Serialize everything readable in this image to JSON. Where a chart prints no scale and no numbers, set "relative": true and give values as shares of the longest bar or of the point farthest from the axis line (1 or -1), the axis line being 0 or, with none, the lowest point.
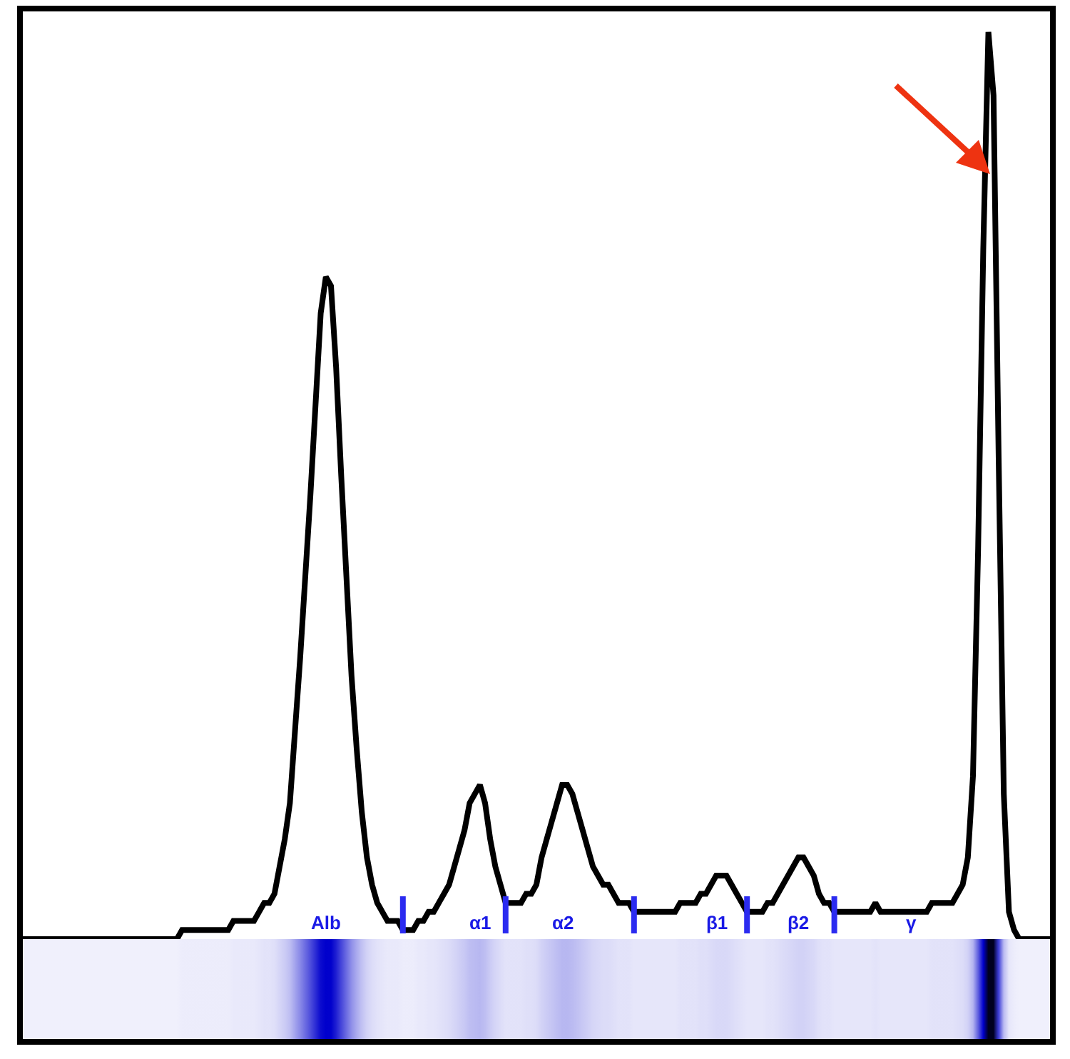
{
  "chart_data": {
    "type": "line",
    "relative": true,
    "grid": false,
    "legend": false,
    "marker": "none",
    "line_style": "solid",
    "categories": [
      null,
      null,
      null,
      null,
      null,
      null,
      null,
      null,
      null,
      null,
      null,
      null,
      null,
      null,
      null,
      null,
      null,
      null,
      null,
      null,
      null,
      null,
      null,
      null,
      null,
      null,
      null,
      null,
      null,
      null,
      null,
      null,
      null,
      null,
      null,
      null,
      null,
      null,
      null,
      null,
      null,
      null,
      null,
      null,
      null,
      null,
      null,
      null,
      null,
      null,
      null,
      null,
      null,
      null,
      null,
      null,
      null,
      null,
      null,
      null,
      null,
      null,
      null,
      null,
      null,
      null,
      null,
      null,
      null,
      null,
      null,
      null,
      null,
      null,
      null,
      null,
      null,
      null,
      null,
      null,
      null,
      null,
      null,
      null,
      null,
      null,
      null,
      null,
      null,
      null,
      null,
      null,
      null,
      null,
      null,
      null,
      null,
      null,
      null,
      null,
      null,
      null,
      null,
      null,
      null,
      null,
      null,
      null,
      null,
      null,
      null,
      null,
      null,
      null,
      null,
      null,
      null,
      null,
      null,
      null,
      null,
      null,
      null,
      null,
      null,
      null,
      null,
      null,
      null,
      null,
      null,
      null,
      null,
      null,
      null,
      null,
      null,
      null,
      null,
      null,
      null,
      null,
      null,
      null,
      null,
      null,
      null,
      null,
      null,
      null,
      null,
      null,
      null,
      null,
      null,
      null,
      null,
      null,
      null,
      null,
      null,
      null,
      null,
      null,
      null,
      null,
      null,
      null,
      null,
      null,
      null,
      null,
      null,
      null,
      null,
      null,
      null,
      null,
      null,
      null,
      null,
      null,
      null,
      null,
      null,
      null,
      null,
      null,
      null,
      null,
      null,
      null,
      null,
      null,
      null,
      null,
      null,
      null,
      null,
      null,
      null
    ],
    "series": [
      {
        "color": "#000000",
        "values": [
          0,
          0,
          0,
          0,
          0,
          0,
          0,
          0,
          0,
          0,
          0,
          0,
          0,
          0,
          0,
          0,
          0,
          0,
          0,
          0,
          0,
          0,
          0,
          0,
          0,
          0,
          0,
          0,
          0,
          0,
          0,
          0.01,
          0.01,
          0.01,
          0.01,
          0.01,
          0.01,
          0.01,
          0.01,
          0.01,
          0.01,
          0.02,
          0.02,
          0.02,
          0.02,
          0.02,
          0.03,
          0.04,
          0.04,
          0.05,
          0.08,
          0.11,
          0.15,
          0.23,
          0.31,
          0.4,
          0.49,
          0.59,
          0.69,
          0.73,
          0.72,
          0.63,
          0.51,
          0.4,
          0.29,
          0.21,
          0.14,
          0.09,
          0.06,
          0.04,
          0.03,
          0.02,
          0.02,
          0.02,
          0.01,
          0.01,
          0.01,
          0.02,
          0.02,
          0.03,
          0.03,
          0.04,
          0.05,
          0.06,
          0.08,
          0.1,
          0.12,
          0.15,
          0.16,
          0.17,
          0.15,
          0.11,
          0.08,
          0.06,
          0.04,
          0.04,
          0.04,
          0.04,
          0.05,
          0.05,
          0.06,
          0.09,
          0.11,
          0.13,
          0.15,
          0.17,
          0.17,
          0.16,
          0.14,
          0.12,
          0.1,
          0.08,
          0.07,
          0.06,
          0.06,
          0.05,
          0.04,
          0.04,
          0.04,
          0.03,
          0.03,
          0.03,
          0.03,
          0.03,
          0.03,
          0.03,
          0.03,
          0.03,
          0.04,
          0.04,
          0.04,
          0.04,
          0.05,
          0.05,
          0.06,
          0.07,
          0.07,
          0.07,
          0.06,
          0.05,
          0.04,
          0.03,
          0.03,
          0.03,
          0.03,
          0.04,
          0.04,
          0.05,
          0.06,
          0.07,
          0.08,
          0.09,
          0.09,
          0.08,
          0.07,
          0.05,
          0.04,
          0.04,
          0.03,
          0.03,
          0.03,
          0.03,
          0.03,
          0.03,
          0.03,
          0.03,
          0.04,
          0.03,
          0.03,
          0.03,
          0.03,
          0.03,
          0.03,
          0.03,
          0.03,
          0.03,
          0.03,
          0.04,
          0.04,
          0.04,
          0.04,
          0.04,
          0.05,
          0.06,
          0.09,
          0.18,
          0.43,
          0.76,
          1,
          0.93,
          0.53,
          0.16,
          0.03,
          0.01,
          0,
          0,
          0,
          0,
          0,
          0,
          0
        ]
      }
    ],
    "annotations": [
      "Alb",
      "α1",
      "α2",
      "β1",
      "β2",
      "γ"
    ]
  }
}
